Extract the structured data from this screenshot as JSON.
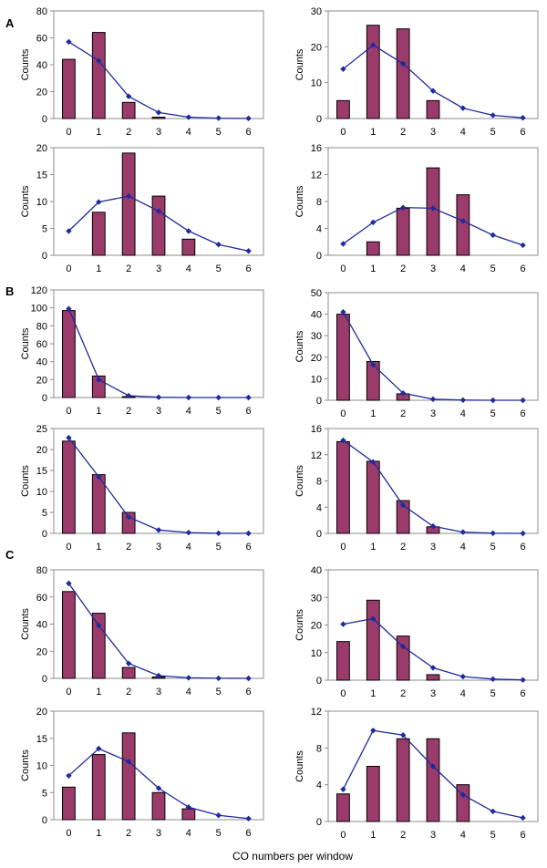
{
  "figure": {
    "xlabel": "CO numbers per window",
    "panel_labels": [
      "A",
      "B",
      "C"
    ],
    "bar_color": "#9B3B6B",
    "line_color": "#1F2A9C"
  },
  "chart_data": [
    {
      "panel": "A",
      "position": "left",
      "type": "bar",
      "categories": [
        "0",
        "1",
        "2",
        "3",
        "4",
        "5",
        "6"
      ],
      "series": [
        {
          "type": "bar",
          "values": [
            44,
            64,
            12,
            1,
            0,
            0,
            0
          ]
        },
        {
          "type": "line",
          "values": [
            57,
            43,
            16.5,
            4.5,
            1,
            0.3,
            0.1
          ]
        }
      ],
      "ylabel": "Counts",
      "ylim": [
        0,
        80
      ],
      "yticks": [
        0,
        20,
        40,
        60,
        80
      ]
    },
    {
      "panel": "A",
      "position": "right",
      "type": "bar",
      "categories": [
        "0",
        "1",
        "2",
        "3",
        "4",
        "5",
        "6"
      ],
      "series": [
        {
          "type": "bar",
          "values": [
            5,
            26,
            25,
            5,
            0,
            0,
            0
          ]
        },
        {
          "type": "line",
          "values": [
            13.8,
            20.5,
            15.3,
            7.7,
            2.9,
            0.9,
            0.2
          ]
        }
      ],
      "ylabel": "Counts",
      "ylim": [
        0,
        30
      ],
      "yticks": [
        0,
        10,
        20,
        30
      ]
    },
    {
      "panel": "A",
      "position": "left",
      "type": "bar",
      "categories": [
        "0",
        "1",
        "2",
        "3",
        "4",
        "5",
        "6"
      ],
      "series": [
        {
          "type": "bar",
          "values": [
            0,
            8,
            19,
            11,
            3,
            0,
            0
          ]
        },
        {
          "type": "line",
          "values": [
            4.5,
            9.9,
            11,
            8.2,
            4.5,
            2,
            0.8
          ]
        }
      ],
      "ylabel": "Counts",
      "ylim": [
        0,
        20
      ],
      "yticks": [
        0,
        5,
        10,
        15,
        20
      ]
    },
    {
      "panel": "A",
      "position": "right",
      "type": "bar",
      "categories": [
        "0",
        "1",
        "2",
        "3",
        "4",
        "5",
        "6"
      ],
      "series": [
        {
          "type": "bar",
          "values": [
            0,
            2,
            7,
            13,
            9,
            0,
            0
          ]
        },
        {
          "type": "line",
          "values": [
            1.7,
            4.9,
            7.1,
            7,
            5.1,
            3,
            1.5
          ]
        }
      ],
      "ylabel": "Counts",
      "ylim": [
        0,
        16
      ],
      "yticks": [
        0,
        4,
        8,
        12,
        16
      ]
    },
    {
      "panel": "B",
      "position": "left",
      "type": "bar",
      "categories": [
        "0",
        "1",
        "2",
        "3",
        "4",
        "5",
        "6"
      ],
      "series": [
        {
          "type": "bar",
          "values": [
            97,
            24,
            1,
            0,
            0,
            0,
            0
          ]
        },
        {
          "type": "line",
          "values": [
            99,
            20,
            2,
            0.3,
            0,
            0,
            0
          ]
        }
      ],
      "ylabel": "Counts",
      "ylim": [
        0,
        120
      ],
      "yticks": [
        0,
        20,
        40,
        60,
        80,
        100,
        120
      ]
    },
    {
      "panel": "B",
      "position": "right",
      "type": "bar",
      "categories": [
        "0",
        "1",
        "2",
        "3",
        "4",
        "5",
        "6"
      ],
      "series": [
        {
          "type": "bar",
          "values": [
            40,
            18,
            3,
            0,
            0,
            0,
            0
          ]
        },
        {
          "type": "line",
          "values": [
            41,
            16.5,
            3.3,
            0.5,
            0.1,
            0,
            0
          ]
        }
      ],
      "ylabel": "Counts",
      "ylim": [
        0,
        50
      ],
      "yticks": [
        0,
        10,
        20,
        30,
        40,
        50
      ]
    },
    {
      "panel": "B",
      "position": "left",
      "type": "bar",
      "categories": [
        "0",
        "1",
        "2",
        "3",
        "4",
        "5",
        "6"
      ],
      "series": [
        {
          "type": "bar",
          "values": [
            22,
            14,
            5,
            0,
            0,
            0,
            0
          ]
        },
        {
          "type": "line",
          "values": [
            22.8,
            13.5,
            3.9,
            0.8,
            0.2,
            0.03,
            0
          ]
        }
      ],
      "ylabel": "Counts",
      "ylim": [
        0,
        25
      ],
      "yticks": [
        0,
        5,
        10,
        15,
        20,
        25
      ]
    },
    {
      "panel": "B",
      "position": "right",
      "type": "bar",
      "categories": [
        "0",
        "1",
        "2",
        "3",
        "4",
        "5",
        "6"
      ],
      "series": [
        {
          "type": "bar",
          "values": [
            14,
            11,
            5,
            1,
            0,
            0,
            0
          ]
        },
        {
          "type": "line",
          "values": [
            14.2,
            10.9,
            4.3,
            1.1,
            0.2,
            0.03,
            0
          ]
        }
      ],
      "ylabel": "Counts",
      "ylim": [
        0,
        16
      ],
      "yticks": [
        0,
        4,
        8,
        12,
        16
      ]
    },
    {
      "panel": "C",
      "position": "left",
      "type": "bar",
      "categories": [
        "0",
        "1",
        "2",
        "3",
        "4",
        "5",
        "6"
      ],
      "series": [
        {
          "type": "bar",
          "values": [
            64,
            48,
            8,
            1,
            0,
            0,
            0
          ]
        },
        {
          "type": "line",
          "values": [
            70,
            39,
            11,
            2,
            0.4,
            0.05,
            0
          ]
        }
      ],
      "ylabel": "Counts",
      "ylim": [
        0,
        80
      ],
      "yticks": [
        0,
        20,
        40,
        60,
        80
      ]
    },
    {
      "panel": "C",
      "position": "right",
      "type": "bar",
      "categories": [
        "0",
        "1",
        "2",
        "3",
        "4",
        "5",
        "6"
      ],
      "series": [
        {
          "type": "bar",
          "values": [
            14,
            29,
            16,
            2,
            0,
            0,
            0
          ]
        },
        {
          "type": "line",
          "values": [
            20.3,
            22.3,
            12.2,
            4.5,
            1.3,
            0.4,
            0.1
          ]
        }
      ],
      "ylabel": "Counts",
      "ylim": [
        0,
        40
      ],
      "yticks": [
        0,
        10,
        20,
        30,
        40
      ]
    },
    {
      "panel": "C",
      "position": "left",
      "type": "bar",
      "categories": [
        "0",
        "1",
        "2",
        "3",
        "4",
        "5",
        "6"
      ],
      "series": [
        {
          "type": "bar",
          "values": [
            6,
            12,
            16,
            5,
            2,
            0,
            0
          ]
        },
        {
          "type": "line",
          "values": [
            8.1,
            13.1,
            10.7,
            5.8,
            2.3,
            0.8,
            0.2
          ]
        }
      ],
      "ylabel": "Counts",
      "ylim": [
        0,
        20
      ],
      "yticks": [
        0,
        5,
        10,
        15,
        20
      ]
    },
    {
      "panel": "C",
      "position": "right",
      "type": "bar",
      "categories": [
        "0",
        "1",
        "2",
        "3",
        "4",
        "5",
        "6"
      ],
      "series": [
        {
          "type": "bar",
          "values": [
            3,
            6,
            9,
            9,
            4,
            0,
            0
          ]
        },
        {
          "type": "line",
          "values": [
            3.5,
            9.9,
            9.4,
            6,
            2.9,
            1.1,
            0.4
          ]
        }
      ],
      "ylabel": "Counts",
      "ylim": [
        0,
        12
      ],
      "yticks": [
        0,
        4,
        8,
        12
      ]
    }
  ]
}
